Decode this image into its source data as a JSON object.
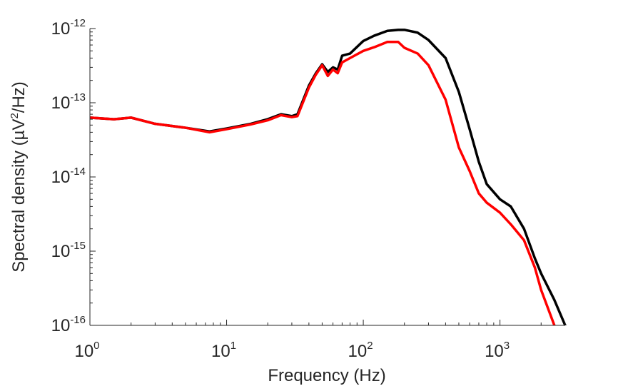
{
  "chart_data": {
    "type": "line",
    "title": "",
    "xlabel": "Frequency (Hz)",
    "ylabel_parts": {
      "before": "Spectral density (µV",
      "sup": "2",
      "after": "/Hz)"
    },
    "x_scale": "log",
    "y_scale": "log",
    "xlim": [
      1,
      3000
    ],
    "ylim": [
      1e-16,
      1e-12
    ],
    "grid": false,
    "legend": "none",
    "x_ticks": [
      {
        "value": 1,
        "base": "10",
        "exp": "0"
      },
      {
        "value": 10,
        "base": "10",
        "exp": "1"
      },
      {
        "value": 100,
        "base": "10",
        "exp": "2"
      },
      {
        "value": 1000,
        "base": "10",
        "exp": "3"
      }
    ],
    "y_ticks": [
      {
        "value": 1e-16,
        "base": "10",
        "exp": "-16"
      },
      {
        "value": 1e-15,
        "base": "10",
        "exp": "-15"
      },
      {
        "value": 1e-14,
        "base": "10",
        "exp": "-14"
      },
      {
        "value": 1e-13,
        "base": "10",
        "exp": "-13"
      },
      {
        "value": 1e-12,
        "base": "10",
        "exp": "-12"
      }
    ],
    "series": [
      {
        "color": "#000000",
        "x": [
          1,
          1.5,
          2,
          3,
          5,
          7.5,
          10,
          15,
          20,
          25,
          30,
          33,
          40,
          45,
          50,
          55,
          60,
          65,
          70,
          80,
          100,
          120,
          150,
          180,
          200,
          250,
          300,
          400,
          500,
          600,
          700,
          800,
          1000,
          1200,
          1500,
          1800,
          2000,
          2500,
          3000
        ],
        "values": [
          6.3e-14,
          6e-14,
          6.3e-14,
          5.2e-14,
          4.6e-14,
          4.1e-14,
          4.5e-14,
          5.2e-14,
          6e-14,
          7e-14,
          6.6e-14,
          7e-14,
          1.7e-13,
          2.5e-13,
          3.3e-13,
          2.6e-13,
          3e-13,
          2.8e-13,
          4.3e-13,
          4.6e-13,
          6.8e-13,
          8e-13,
          9.3e-13,
          9.6e-13,
          9.6e-13,
          8.8e-13,
          7e-13,
          4e-13,
          1.4e-13,
          4.4e-14,
          1.6e-14,
          8e-15,
          5e-15,
          4e-15,
          2e-15,
          8e-16,
          5e-16,
          2.2e-16,
          1e-16
        ]
      },
      {
        "color": "#ff0000",
        "x": [
          1,
          1.5,
          2,
          3,
          5,
          7.5,
          10,
          15,
          20,
          25,
          30,
          33,
          40,
          45,
          50,
          55,
          60,
          65,
          70,
          80,
          100,
          120,
          150,
          180,
          200,
          250,
          300,
          400,
          500,
          600,
          700,
          800,
          1000,
          1200,
          1500,
          1800,
          2000,
          2500
        ],
        "values": [
          6.3e-14,
          6e-14,
          6.3e-14,
          5.2e-14,
          4.6e-14,
          4e-14,
          4.4e-14,
          5.1e-14,
          5.8e-14,
          6.8e-14,
          6.4e-14,
          6.6e-14,
          1.6e-13,
          2.4e-13,
          3.2e-13,
          2.3e-13,
          2.8e-13,
          2.5e-13,
          3.5e-13,
          4e-13,
          5e-13,
          5.6e-13,
          6.6e-13,
          6.6e-13,
          5.5e-13,
          4.6e-13,
          3.2e-13,
          1.1e-13,
          2.5e-14,
          1.2e-14,
          6e-15,
          4.5e-15,
          3.3e-15,
          2.3e-15,
          1.4e-15,
          6e-16,
          3e-16,
          1e-16
        ]
      }
    ]
  }
}
